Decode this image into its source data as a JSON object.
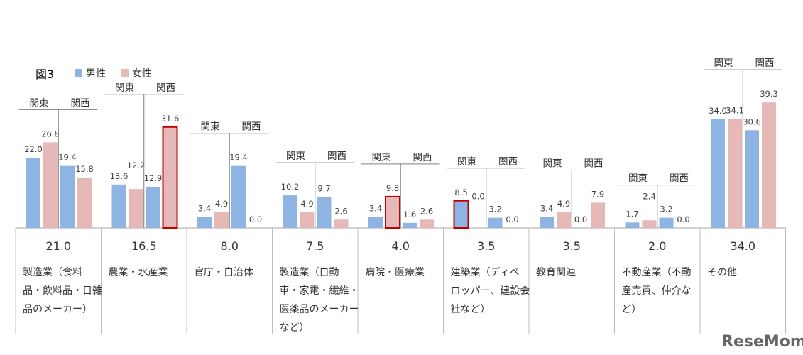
{
  "figure_label": "図3",
  "watermark": "ReseMom",
  "colors": {
    "male": "#8EB4E3",
    "female": "#E6B9B8",
    "highlight": "#C00000",
    "axis": "#A6A6A6"
  },
  "chart_data": {
    "type": "bar",
    "legend": {
      "position": "top-left",
      "items": [
        "男性",
        "女性"
      ]
    },
    "region_labels": [
      "関東",
      "関西"
    ],
    "ylim": [
      0,
      40
    ],
    "grid": false,
    "categories": [
      {
        "name": "製造業（食料品・飲料品・日雑品のメーカー）",
        "lines": [
          "製造業（食料",
          "品・飲料品・日雑",
          "品のメーカー）"
        ],
        "average": "21.0",
        "values": [
          22.0,
          26.8,
          19.4,
          15.8
        ],
        "labels": [
          "22.0",
          "26.8",
          "19.4",
          "15.8"
        ],
        "highlight": []
      },
      {
        "name": "農業・水産業",
        "lines": [
          "農業・水産業"
        ],
        "average": "16.5",
        "values": [
          13.6,
          12.2,
          12.9,
          31.6
        ],
        "labels": [
          "13.6",
          "12.2",
          "12.9",
          "31.6"
        ],
        "highlight": [
          3
        ]
      },
      {
        "name": "官庁・自治体",
        "lines": [
          "官庁・自治体"
        ],
        "average": "8.0",
        "values": [
          3.4,
          4.9,
          19.4,
          0.0
        ],
        "labels": [
          "3.4",
          "4.9",
          "19.4",
          "0.0"
        ],
        "highlight": []
      },
      {
        "name": "製造業（自動車・家電・繊維・医薬品のメーカーなど）",
        "lines": [
          "製造業（自動",
          "車・家電・繊維・",
          "医薬品のメーカー",
          "など）"
        ],
        "average": "7.5",
        "values": [
          10.2,
          4.9,
          9.7,
          2.6
        ],
        "labels": [
          "10.2",
          "4.9",
          "9.7",
          "2.6"
        ],
        "highlight": []
      },
      {
        "name": "病院・医療業",
        "lines": [
          "病院・医療業"
        ],
        "average": "4.0",
        "values": [
          3.4,
          9.8,
          1.6,
          2.6
        ],
        "labels": [
          "3.4",
          "9.8",
          "1.6",
          "2.6"
        ],
        "highlight": [
          1
        ]
      },
      {
        "name": "建築業（ディベロッパー、建設会社など）",
        "lines": [
          "建築業（ディベ",
          "ロッパー、建設会",
          "社など）"
        ],
        "average": "3.5",
        "values": [
          8.5,
          0.0,
          3.2,
          0.0
        ],
        "labels": [
          "8.5",
          "0.0",
          "3.2",
          "0.0"
        ],
        "highlight": [
          0
        ]
      },
      {
        "name": "教育関連",
        "lines": [
          "教育関連"
        ],
        "average": "3.5",
        "values": [
          3.4,
          4.9,
          0.0,
          7.9
        ],
        "labels": [
          "3.4",
          "4.9",
          "0.0",
          "7.9"
        ],
        "highlight": []
      },
      {
        "name": "不動産業（不動産売買、仲介など）",
        "lines": [
          "不動産業（不動",
          "産売買、仲介な",
          "ど）"
        ],
        "average": "2.0",
        "values": [
          1.7,
          2.4,
          3.2,
          0.0
        ],
        "labels": [
          "1.7",
          "2.4",
          "3.2",
          "0.0"
        ],
        "highlight": []
      },
      {
        "name": "その他",
        "lines": [
          "その他"
        ],
        "average": "34.0",
        "values": [
          34.0,
          34.1,
          30.6,
          39.3
        ],
        "labels": [
          "34.0",
          "34.1",
          "30.6",
          "39.3"
        ],
        "highlight": []
      }
    ]
  }
}
